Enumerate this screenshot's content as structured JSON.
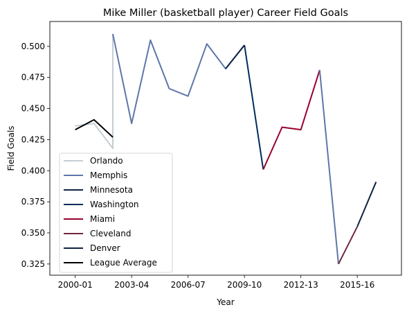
{
  "chart_data": {
    "type": "line",
    "title": "Mike Miller (basketball player) Career Field Goals",
    "xlabel": "Year",
    "ylabel": "Field Goals",
    "x_ticks": [
      "2000-01",
      "2003-04",
      "2006-07",
      "2009-10",
      "2012-13",
      "2015-16"
    ],
    "y_ticks": [
      "0.325",
      "0.350",
      "0.375",
      "0.400",
      "0.425",
      "0.450",
      "0.475",
      "0.500"
    ],
    "ylim": [
      0.316,
      0.52
    ],
    "grid": false,
    "legend_position": "lower-left",
    "series": [
      {
        "name": "Orlando",
        "color": "#c4ced4",
        "points": [
          {
            "season": "2000-01",
            "y": 0.436
          },
          {
            "season": "2001-02",
            "y": 0.438
          },
          {
            "season": "2002-03",
            "y": 0.418
          },
          {
            "season": "2002-03",
            "y": 0.51
          }
        ]
      },
      {
        "name": "Memphis",
        "color": "#5d76a9",
        "points": [
          {
            "season": "2002-03",
            "y": 0.51
          },
          {
            "season": "2003-04",
            "y": 0.438
          },
          {
            "season": "2004-05",
            "y": 0.505
          },
          {
            "season": "2005-06",
            "y": 0.466
          },
          {
            "season": "2006-07",
            "y": 0.46
          },
          {
            "season": "2007-08",
            "y": 0.502
          },
          {
            "season": "2008-09",
            "y": 0.482
          },
          {
            "season": "2009-10",
            "y": 0.501
          }
        ]
      },
      {
        "name": "Minnesota",
        "color": "#0c2340",
        "points": [
          {
            "season": "2008-09",
            "y": 0.482
          },
          {
            "season": "2009-10",
            "y": 0.501
          }
        ]
      },
      {
        "name": "Washington",
        "color": "#002b5c",
        "points": [
          {
            "season": "2009-10",
            "y": 0.501
          },
          {
            "season": "2010-11",
            "y": 0.401
          }
        ]
      },
      {
        "name": "Miami",
        "color": "#98002e",
        "points": [
          {
            "season": "2010-11",
            "y": 0.401
          },
          {
            "season": "2011-12",
            "y": 0.435
          },
          {
            "season": "2012-13",
            "y": 0.433
          },
          {
            "season": "2013-14",
            "y": 0.481
          }
        ]
      },
      {
        "name": "Memphis",
        "color": "#5d76a9",
        "points": [
          {
            "season": "2013-14",
            "y": 0.481
          },
          {
            "season": "2014-15",
            "y": 0.325
          }
        ]
      },
      {
        "name": "Cleveland",
        "color": "#6f263d",
        "points": [
          {
            "season": "2014-15",
            "y": 0.325
          },
          {
            "season": "2015-16",
            "y": 0.355
          }
        ]
      },
      {
        "name": "Denver",
        "color": "#0e2240",
        "points": [
          {
            "season": "2015-16",
            "y": 0.355
          },
          {
            "season": "2016-17",
            "y": 0.391
          }
        ]
      },
      {
        "name": "League Average",
        "color": "#000000",
        "points": [
          {
            "season": "2000-01",
            "y": 0.433
          },
          {
            "season": "2001-02",
            "y": 0.441
          },
          {
            "season": "2002-03",
            "y": 0.427
          }
        ]
      }
    ],
    "legend": [
      {
        "label": "Orlando",
        "color": "#c4ced4"
      },
      {
        "label": "Memphis",
        "color": "#5d76a9"
      },
      {
        "label": "Minnesota",
        "color": "#0c2340"
      },
      {
        "label": "Washington",
        "color": "#002b5c"
      },
      {
        "label": "Miami",
        "color": "#98002e"
      },
      {
        "label": "Cleveland",
        "color": "#6f263d"
      },
      {
        "label": "Denver",
        "color": "#0e2240"
      },
      {
        "label": "League Average",
        "color": "#000000"
      }
    ]
  }
}
